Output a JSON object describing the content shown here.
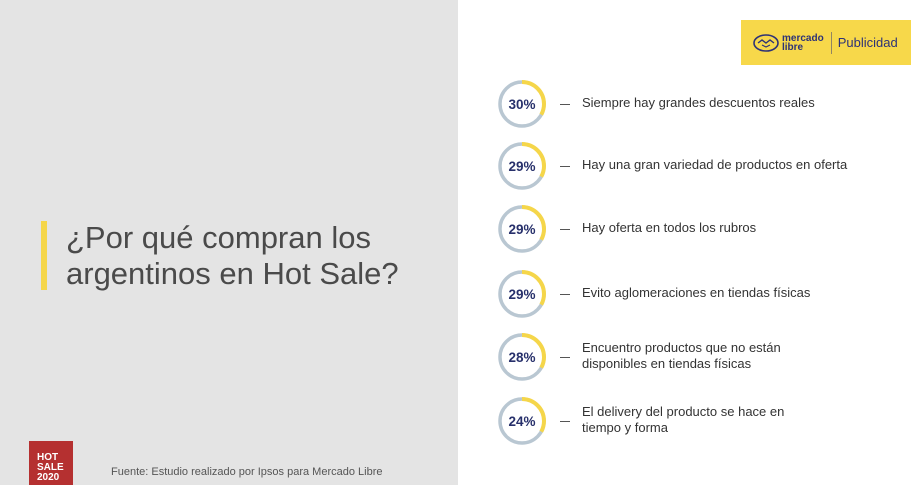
{
  "slide": {
    "title": "¿Por qué compran los argentinos en Hot Sale?",
    "source": "Fuente: Estudio realizado por Ipsos para Mercado Libre",
    "badge": {
      "line1": "HOT",
      "line2": "SALE",
      "line3": "2020"
    },
    "sponsor": {
      "logo_line1": "mercado",
      "logo_line2": "libre",
      "label": "Publicidad"
    }
  },
  "colors": {
    "accent_yellow": "#f5d64a",
    "ring_gray": "#b9c7d2",
    "label_navy": "#27306b",
    "badge_red": "#b53030",
    "left_bg": "#e4e4e4"
  },
  "chart_data": {
    "type": "donut",
    "unit": "%",
    "items": [
      {
        "value": 30,
        "label": "30%",
        "description": [
          "Siempre hay grandes descuentos reales"
        ]
      },
      {
        "value": 29,
        "label": "29%",
        "description": [
          "Hay una gran variedad de productos en oferta"
        ]
      },
      {
        "value": 29,
        "label": "29%",
        "description": [
          "Hay oferta en todos los rubros"
        ]
      },
      {
        "value": 29,
        "label": "29%",
        "description": [
          "Evito aglomeraciones en tiendas físicas"
        ]
      },
      {
        "value": 28,
        "label": "28%",
        "description": [
          "Encuentro productos que no están",
          "disponibles en tiendas físicas"
        ]
      },
      {
        "value": 24,
        "label": "24%",
        "description": [
          "El delivery del producto se hace en",
          "tiempo y forma"
        ]
      }
    ]
  }
}
